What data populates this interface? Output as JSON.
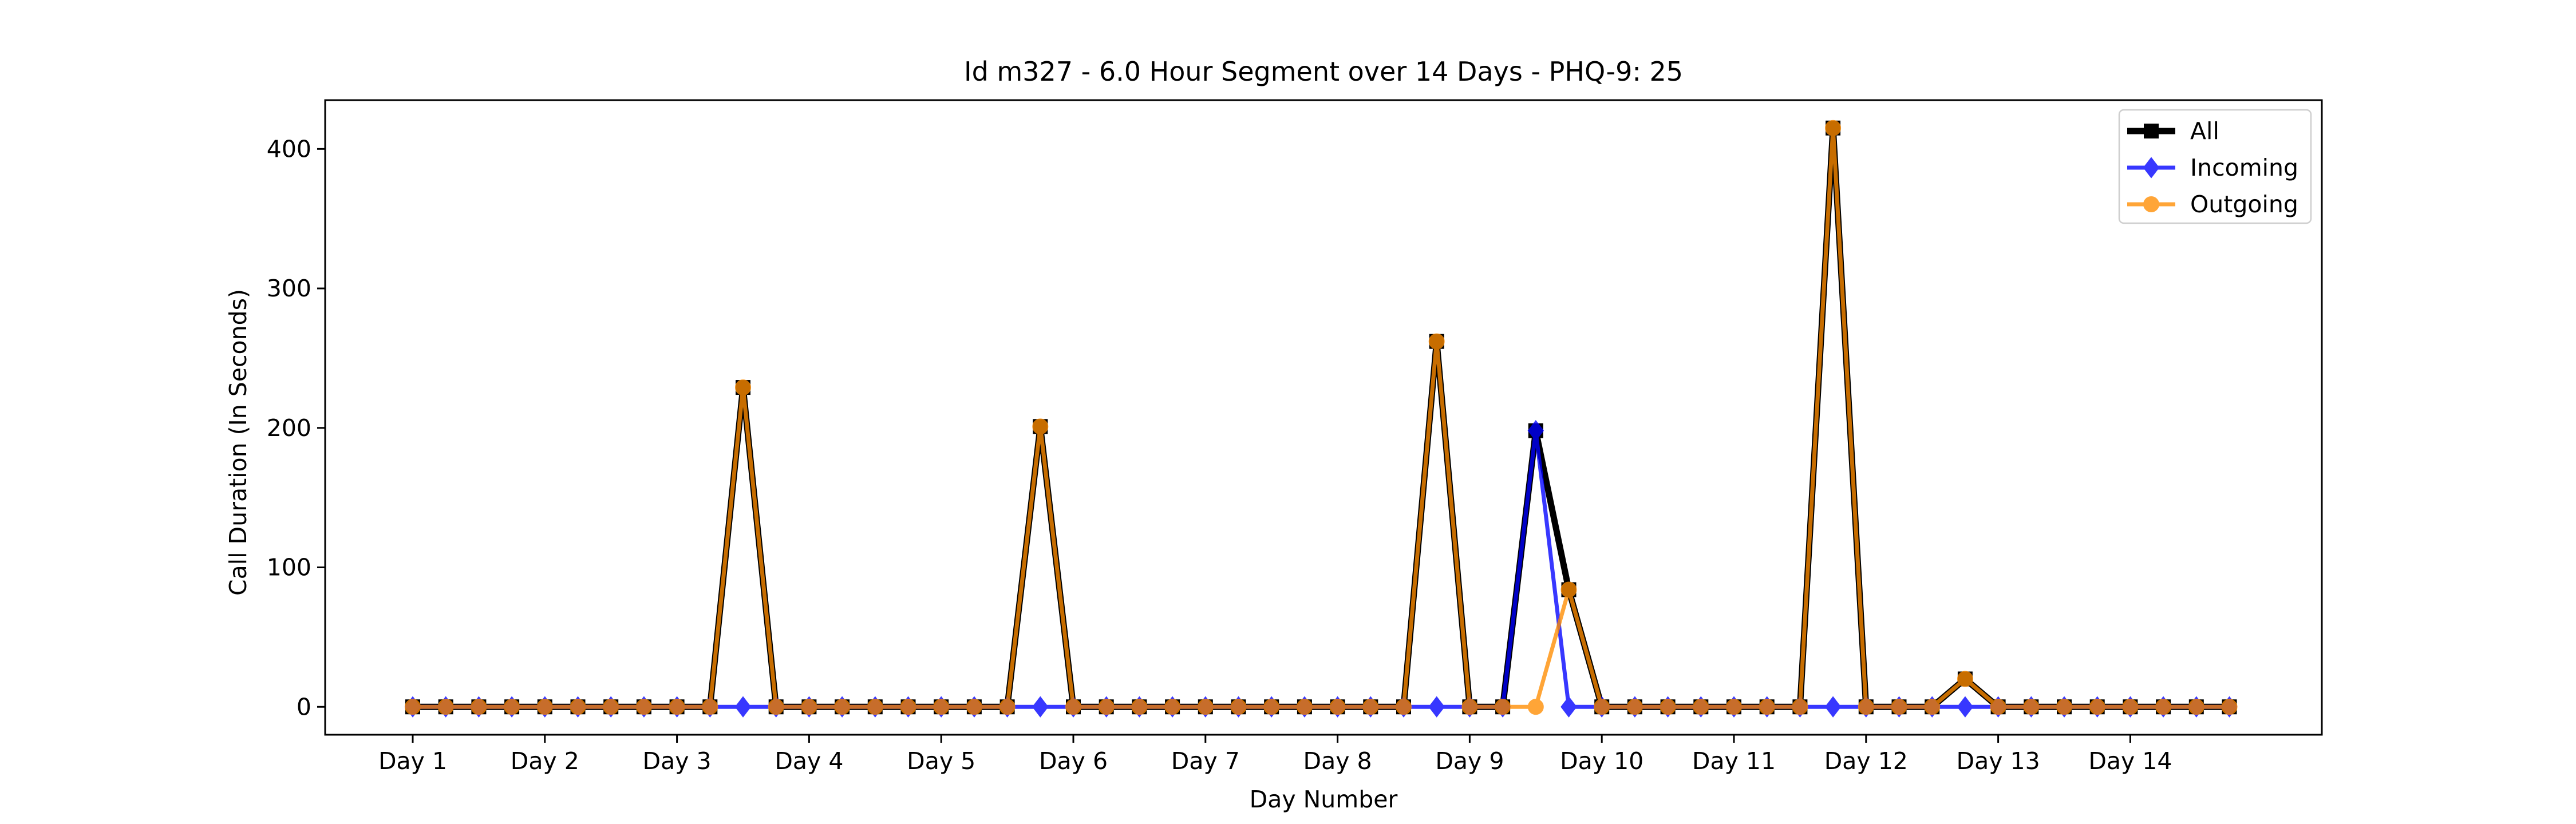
{
  "chart_data": {
    "type": "line",
    "title": "Id m327 - 6.0 Hour Segment over 14 Days - PHQ-9: 25",
    "xlabel": "Day Number",
    "ylabel": "Call Duration (In Seconds)",
    "x_tick_labels": [
      "Day 1",
      "Day 2",
      "Day 3",
      "Day 4",
      "Day 5",
      "Day 6",
      "Day 7",
      "Day 8",
      "Day 9",
      "Day 10",
      "Day 11",
      "Day 12",
      "Day 13",
      "Day 14"
    ],
    "y_ticks": [
      0,
      100,
      200,
      300,
      400
    ],
    "ylim": [
      -20,
      435
    ],
    "grid": false,
    "legend_position": "top-right",
    "series": [
      {
        "name": "All",
        "color": "#000000",
        "marker": "square",
        "values": [
          0,
          0,
          0,
          0,
          0,
          0,
          0,
          0,
          0,
          0,
          229,
          0,
          0,
          0,
          0,
          0,
          0,
          0,
          0,
          201,
          0,
          0,
          0,
          0,
          0,
          0,
          0,
          0,
          0,
          0,
          0,
          262,
          0,
          0,
          198,
          84,
          0,
          0,
          0,
          0,
          0,
          0,
          0,
          415,
          0,
          0,
          0,
          20,
          0,
          0,
          0,
          0,
          0,
          0,
          0,
          0
        ]
      },
      {
        "name": "Incoming",
        "color": "#0000ff",
        "marker": "diamond",
        "values": [
          0,
          0,
          0,
          0,
          0,
          0,
          0,
          0,
          0,
          0,
          0,
          0,
          0,
          0,
          0,
          0,
          0,
          0,
          0,
          0,
          0,
          0,
          0,
          0,
          0,
          0,
          0,
          0,
          0,
          0,
          0,
          0,
          0,
          0,
          198,
          0,
          0,
          0,
          0,
          0,
          0,
          0,
          0,
          0,
          0,
          0,
          0,
          0,
          0,
          0,
          0,
          0,
          0,
          0,
          0,
          0
        ]
      },
      {
        "name": "Outgoing",
        "color": "#ff8c00",
        "marker": "circle",
        "values": [
          0,
          0,
          0,
          0,
          0,
          0,
          0,
          0,
          0,
          0,
          229,
          0,
          0,
          0,
          0,
          0,
          0,
          0,
          0,
          201,
          0,
          0,
          0,
          0,
          0,
          0,
          0,
          0,
          0,
          0,
          0,
          262,
          0,
          0,
          0,
          84,
          0,
          0,
          0,
          0,
          0,
          0,
          0,
          415,
          0,
          0,
          0,
          20,
          0,
          0,
          0,
          0,
          0,
          0,
          0,
          0
        ]
      }
    ]
  }
}
